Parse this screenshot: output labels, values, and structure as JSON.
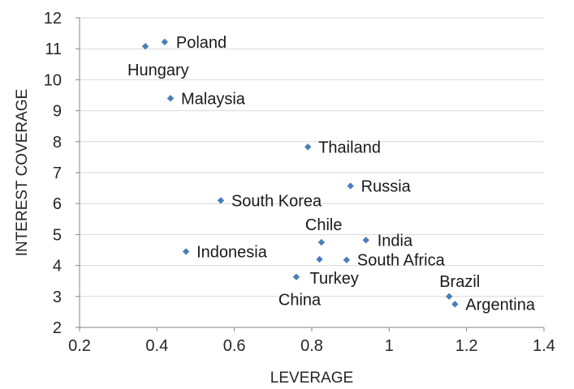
{
  "chart_data": {
    "type": "scatter",
    "xlabel": "LEVERAGE",
    "ylabel": "INTEREST COVERAGE",
    "xlim": [
      0.2,
      1.4
    ],
    "ylim": [
      2,
      12
    ],
    "xticks": [
      0.2,
      0.4,
      0.6,
      0.8,
      1,
      1.2,
      1.4
    ],
    "yticks": [
      2,
      3,
      4,
      5,
      6,
      7,
      8,
      9,
      10,
      11,
      12
    ],
    "xtick_labels": [
      "0.2",
      "0.4",
      "0.6",
      "0.8",
      "1",
      "1.2",
      "1.4"
    ],
    "ytick_labels": [
      "2",
      "3",
      "4",
      "5",
      "6",
      "7",
      "8",
      "9",
      "10",
      "11",
      "12"
    ],
    "grid": "horizontal",
    "marker_color": "#4a7ebb",
    "points": [
      {
        "label": "Poland",
        "x": 0.42,
        "y": 11.22
      },
      {
        "label": "Hungary",
        "x": 0.37,
        "y": 11.08
      },
      {
        "label": "Malaysia",
        "x": 0.435,
        "y": 9.4
      },
      {
        "label": "Thailand",
        "x": 0.79,
        "y": 7.83
      },
      {
        "label": "Russia",
        "x": 0.9,
        "y": 6.57
      },
      {
        "label": "South Korea",
        "x": 0.565,
        "y": 6.1
      },
      {
        "label": "Chile",
        "x": 0.825,
        "y": 4.75
      },
      {
        "label": "India",
        "x": 0.94,
        "y": 4.82
      },
      {
        "label": "Indonesia",
        "x": 0.475,
        "y": 4.45
      },
      {
        "label": "South Africa",
        "x": 0.89,
        "y": 4.18
      },
      {
        "label": "Turkey",
        "x": 0.82,
        "y": 4.2
      },
      {
        "label": "China",
        "x": 0.76,
        "y": 3.63
      },
      {
        "label": "Brazil",
        "x": 1.155,
        "y": 3.0
      },
      {
        "label": "Argentina",
        "x": 1.17,
        "y": 2.75
      }
    ]
  }
}
